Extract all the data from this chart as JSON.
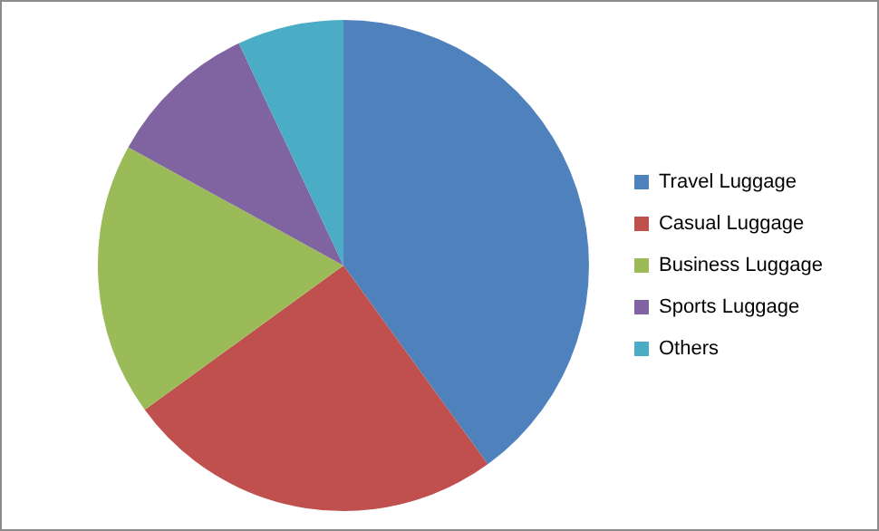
{
  "chart_data": {
    "type": "pie",
    "categories": [
      "Travel Luggage",
      "Casual Luggage",
      "Business Luggage",
      "Sports Luggage",
      "Others"
    ],
    "values": [
      40,
      25,
      18,
      10,
      7
    ],
    "colors": [
      "#4f81bd",
      "#c0504d",
      "#9bbb59",
      "#8064a2",
      "#4bacc6"
    ],
    "legend": "right"
  }
}
